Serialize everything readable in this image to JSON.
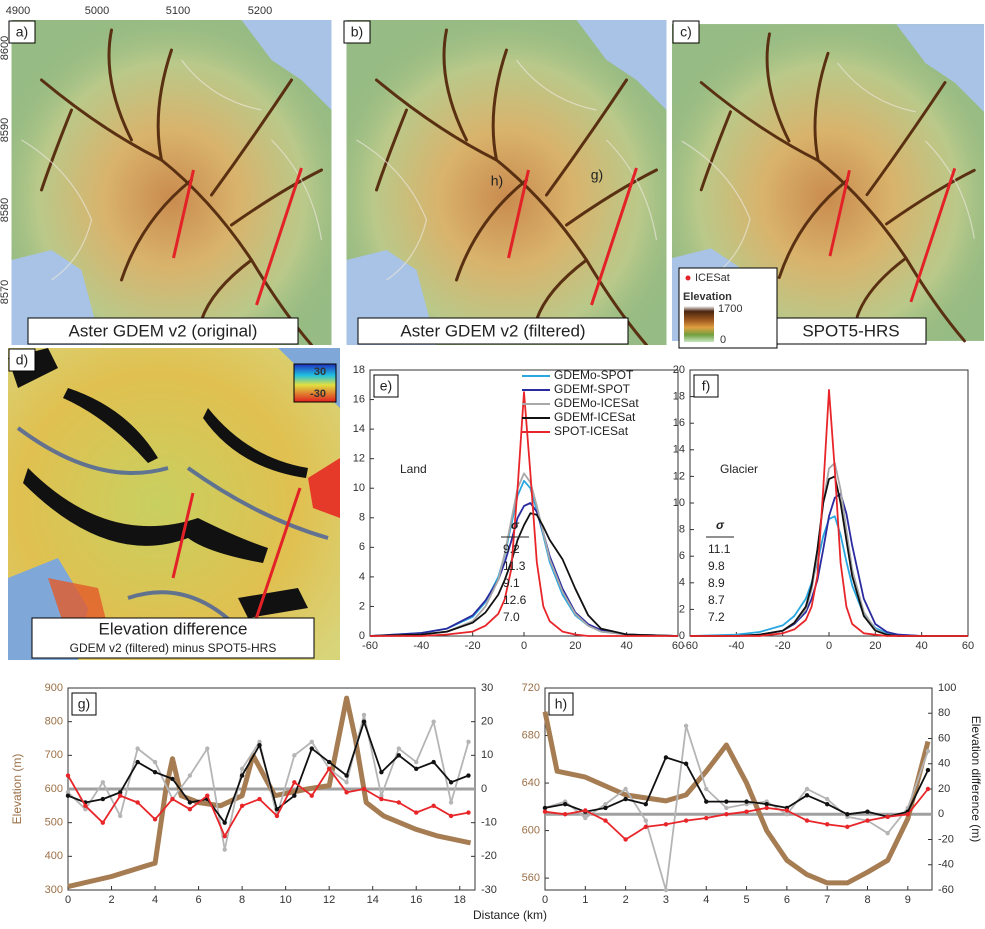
{
  "maps": {
    "top_axis": [
      4900,
      5000,
      5100,
      5200
    ],
    "left_axis": [
      8600,
      8590,
      8580,
      8570
    ],
    "panels": [
      {
        "label": "a)",
        "caption": "Aster GDEM v2 (original)"
      },
      {
        "label": "b)",
        "caption": "Aster GDEM v2 (filtered)",
        "track_labels": [
          "h)",
          "g)"
        ]
      },
      {
        "label": "c)",
        "caption": "SPOT5-HRS"
      },
      {
        "label": "d)",
        "caption": "Elevation difference",
        "subcaption": "GDEM v2 (filtered) minus SPOT5-HRS"
      }
    ],
    "legend": {
      "icesat": "ICESat",
      "elevation": "Elevation",
      "max": "1700",
      "min": "0"
    },
    "colorbar": {
      "max": "30",
      "min": "-30"
    }
  },
  "chart_data": [
    {
      "type": "line",
      "panel_label": "e)",
      "annotation": "Land",
      "legend": "top-right",
      "sigma_title": "σ",
      "x": [
        -60,
        -40,
        -30,
        -20,
        -15,
        -10,
        -7.5,
        -5,
        -2.5,
        0,
        2.5,
        5,
        7.5,
        10,
        15,
        20,
        25,
        30,
        40,
        60
      ],
      "xlim": [
        -60,
        60
      ],
      "xticks": [
        -60,
        -40,
        -20,
        0,
        20,
        40,
        60
      ],
      "ylim": [
        0,
        18
      ],
      "yticks": [
        0,
        2,
        4,
        6,
        8,
        10,
        12,
        14,
        16,
        18
      ],
      "series": [
        {
          "name": "GDEMo-SPOT",
          "color": "#2aa7e0",
          "sigma": "9.2",
          "values": [
            0,
            0.2,
            0.5,
            1.3,
            2.3,
            4.0,
            5.5,
            7.5,
            9.5,
            10.5,
            10.0,
            8.5,
            6.8,
            5.0,
            2.8,
            1.4,
            0.7,
            0.3,
            0.1,
            0
          ]
        },
        {
          "name": "GDEMf-SPOT",
          "color": "#2b2ba0",
          "sigma": "11.3",
          "values": [
            0,
            0.2,
            0.5,
            1.4,
            2.4,
            3.8,
            5.0,
            6.4,
            8.0,
            8.8,
            9.0,
            8.4,
            7.0,
            5.4,
            3.2,
            1.6,
            0.8,
            0.4,
            0.1,
            0
          ]
        },
        {
          "name": "GDEMo-ICESat",
          "color": "#a8a8a8",
          "sigma": "9.1",
          "values": [
            0,
            0.1,
            0.3,
            1.0,
            2.0,
            3.8,
            5.6,
            7.8,
            10.0,
            11.0,
            10.4,
            8.8,
            7.0,
            5.2,
            3.0,
            1.5,
            0.7,
            0.3,
            0.1,
            0
          ]
        },
        {
          "name": "GDEMf-ICESat",
          "color": "#111111",
          "sigma": "12.6",
          "values": [
            0,
            0.1,
            0.3,
            0.9,
            1.6,
            2.8,
            3.8,
            5.0,
            6.5,
            7.5,
            8.3,
            8.2,
            7.4,
            6.5,
            5.2,
            3.2,
            1.4,
            0.5,
            0.1,
            0
          ]
        },
        {
          "name": "SPOT-ICESat",
          "color": "#e8262a",
          "sigma": "7.0",
          "values": [
            0,
            0,
            0.1,
            0.3,
            0.7,
            1.5,
            2.5,
            4.5,
            10,
            16.5,
            11,
            5,
            2,
            1,
            0.3,
            0.1,
            0,
            0,
            0,
            0
          ]
        }
      ]
    },
    {
      "type": "line",
      "panel_label": "f)",
      "annotation": "Glacier",
      "sigma_title": "σ",
      "x": [
        -60,
        -40,
        -30,
        -20,
        -15,
        -10,
        -7.5,
        -5,
        -2.5,
        0,
        2.5,
        5,
        7.5,
        10,
        15,
        20,
        25,
        30,
        40,
        60
      ],
      "xlim": [
        -60,
        60
      ],
      "xticks": [
        -60,
        -40,
        -20,
        0,
        20,
        40,
        60
      ],
      "ylim": [
        0,
        20
      ],
      "yticks": [
        0,
        2,
        4,
        6,
        8,
        10,
        12,
        14,
        16,
        18,
        20
      ],
      "series": [
        {
          "color": "#2aa7e0",
          "sigma": "11.1",
          "values": [
            0,
            0.1,
            0.3,
            0.8,
            1.5,
            2.8,
            4.0,
            5.5,
            7.5,
            8.8,
            9.0,
            7.6,
            5.6,
            3.8,
            1.6,
            0.6,
            0.2,
            0.1,
            0,
            0
          ]
        },
        {
          "color": "#2b2ba0",
          "sigma": "9.8",
          "values": [
            0,
            0,
            0.1,
            0.4,
            0.9,
            1.8,
            2.8,
            4.2,
            6.5,
            9.0,
            10.4,
            10.7,
            9.2,
            6.8,
            2.8,
            0.9,
            0.3,
            0.1,
            0,
            0
          ]
        },
        {
          "color": "#a8a8a8",
          "sigma": "8.9",
          "values": [
            0,
            0,
            0.1,
            0.4,
            1.0,
            2.0,
            3.5,
            6.0,
            10.0,
            12.6,
            13.0,
            11.0,
            8.0,
            5.0,
            1.8,
            0.5,
            0.1,
            0,
            0,
            0
          ]
        },
        {
          "color": "#111111",
          "sigma": "8.7",
          "values": [
            0,
            0,
            0.1,
            0.4,
            1.0,
            2.2,
            3.8,
            6.5,
            10.0,
            11.8,
            12.0,
            10.0,
            7.2,
            4.5,
            1.5,
            0.4,
            0.1,
            0,
            0,
            0
          ]
        },
        {
          "color": "#e8262a",
          "sigma": "7.2",
          "values": [
            0,
            0,
            0,
            0.2,
            0.5,
            1.2,
            2.2,
            4.5,
            11.0,
            18.5,
            12.5,
            5.5,
            2.2,
            0.9,
            0.2,
            0.1,
            0,
            0,
            0,
            0
          ]
        }
      ]
    },
    {
      "type": "line",
      "panel_label": "g)",
      "ylabel": "Elevation (m)",
      "xlabel": "Distance (km)",
      "x": [
        0,
        0.8,
        1.6,
        2.4,
        3.2,
        4.0,
        4.8,
        5.6,
        6.4,
        7.2,
        8.0,
        8.8,
        9.6,
        10.4,
        11.2,
        12.0,
        12.8,
        13.6,
        14.4,
        15.2,
        16.0,
        16.8,
        17.6,
        18.4
      ],
      "xlim": [
        0,
        18.7
      ],
      "xticks": [
        0,
        2,
        4,
        6,
        8,
        10,
        12,
        14,
        16,
        18
      ],
      "ylim": [
        300,
        900
      ],
      "yticks": [
        300,
        400,
        500,
        600,
        700,
        800,
        900
      ],
      "y2lim": [
        -30,
        30
      ],
      "y2ticks": [
        -30,
        -20,
        -10,
        0,
        10,
        20,
        30
      ],
      "reference_line": {
        "value": 0,
        "axis": "y2",
        "color": "#a0a0a0"
      },
      "series": [
        {
          "color": "#a67c52",
          "width": 5,
          "x": [
            0,
            2,
            3.5,
            4,
            4.5,
            4.8,
            5.2,
            6,
            7,
            8,
            8.5,
            9.5,
            11,
            12,
            12.8,
            13.2,
            13.7,
            14.5,
            16,
            17,
            18.5
          ],
          "values": [
            310,
            340,
            370,
            380,
            600,
            690,
            580,
            560,
            550,
            580,
            700,
            580,
            600,
            610,
            870,
            750,
            560,
            520,
            480,
            460,
            440
          ]
        },
        {
          "color": "#b5b5b5",
          "axis": "y2",
          "markers": true,
          "values": [
            -1,
            -6,
            2,
            -8,
            12,
            8,
            -3,
            4,
            12,
            -18,
            6,
            14,
            -8,
            10,
            14,
            6,
            2,
            22,
            -2,
            12,
            8,
            20,
            -4,
            14
          ]
        },
        {
          "color": "#111111",
          "axis": "y2",
          "markers": true,
          "values": [
            -2,
            -4,
            -3,
            -1,
            8,
            5,
            3,
            -4,
            -3,
            -10,
            4,
            13,
            -6,
            -2,
            12,
            8,
            4,
            20,
            5,
            10,
            6,
            8,
            2,
            4
          ]
        },
        {
          "color": "#e8262a",
          "axis": "y2",
          "markers": true,
          "values": [
            4,
            -5,
            -10,
            -2,
            -4,
            -9,
            -3,
            -6,
            -2,
            -14,
            -5,
            -3,
            -8,
            2,
            -2,
            6,
            -1,
            0,
            -3,
            -4,
            -7,
            -5,
            -8,
            -7
          ]
        }
      ]
    },
    {
      "type": "line",
      "panel_label": "h)",
      "y2label": "Elevation difference (m)",
      "x": [
        0,
        0.5,
        1,
        1.5,
        2,
        2.5,
        3,
        3.5,
        4,
        4.5,
        5,
        5.5,
        6,
        6.5,
        7,
        7.5,
        8,
        8.5,
        9,
        9.5
      ],
      "xlim": [
        0,
        9.6
      ],
      "xticks": [
        0,
        1,
        2,
        3,
        4,
        5,
        6,
        7,
        8,
        9
      ],
      "ylim": [
        550,
        720
      ],
      "yticks": [
        560,
        600,
        640,
        680,
        720
      ],
      "y2lim": [
        -60,
        100
      ],
      "y2ticks": [
        -60,
        -40,
        -20,
        0,
        20,
        40,
        60,
        80,
        100
      ],
      "reference_line": {
        "value": 0,
        "axis": "y2",
        "color": "#a0a0a0"
      },
      "series": [
        {
          "color": "#a67c52",
          "width": 5,
          "x": [
            0,
            0.3,
            1,
            2,
            3,
            3.5,
            4,
            4.5,
            5,
            5.5,
            6,
            6.5,
            7,
            7.5,
            8,
            8.5,
            9,
            9.5
          ],
          "values": [
            700,
            650,
            645,
            630,
            625,
            630,
            650,
            672,
            640,
            600,
            575,
            563,
            556,
            556,
            565,
            575,
            610,
            675
          ]
        },
        {
          "color": "#b5b5b5",
          "axis": "y2",
          "markers": true,
          "values": [
            5,
            10,
            -3,
            8,
            20,
            -5,
            -60,
            70,
            20,
            5,
            8,
            10,
            0,
            20,
            12,
            -2,
            -5,
            -15,
            5,
            50
          ]
        },
        {
          "color": "#111111",
          "axis": "y2",
          "markers": true,
          "values": [
            5,
            8,
            2,
            5,
            12,
            8,
            45,
            40,
            10,
            10,
            10,
            8,
            5,
            15,
            8,
            0,
            2,
            -2,
            2,
            35
          ]
        },
        {
          "color": "#e8262a",
          "axis": "y2",
          "markers": true,
          "values": [
            2,
            0,
            3,
            -5,
            -20,
            -10,
            -8,
            -5,
            -3,
            0,
            2,
            5,
            3,
            -5,
            -8,
            -10,
            -5,
            -2,
            0,
            20
          ]
        }
      ]
    }
  ]
}
